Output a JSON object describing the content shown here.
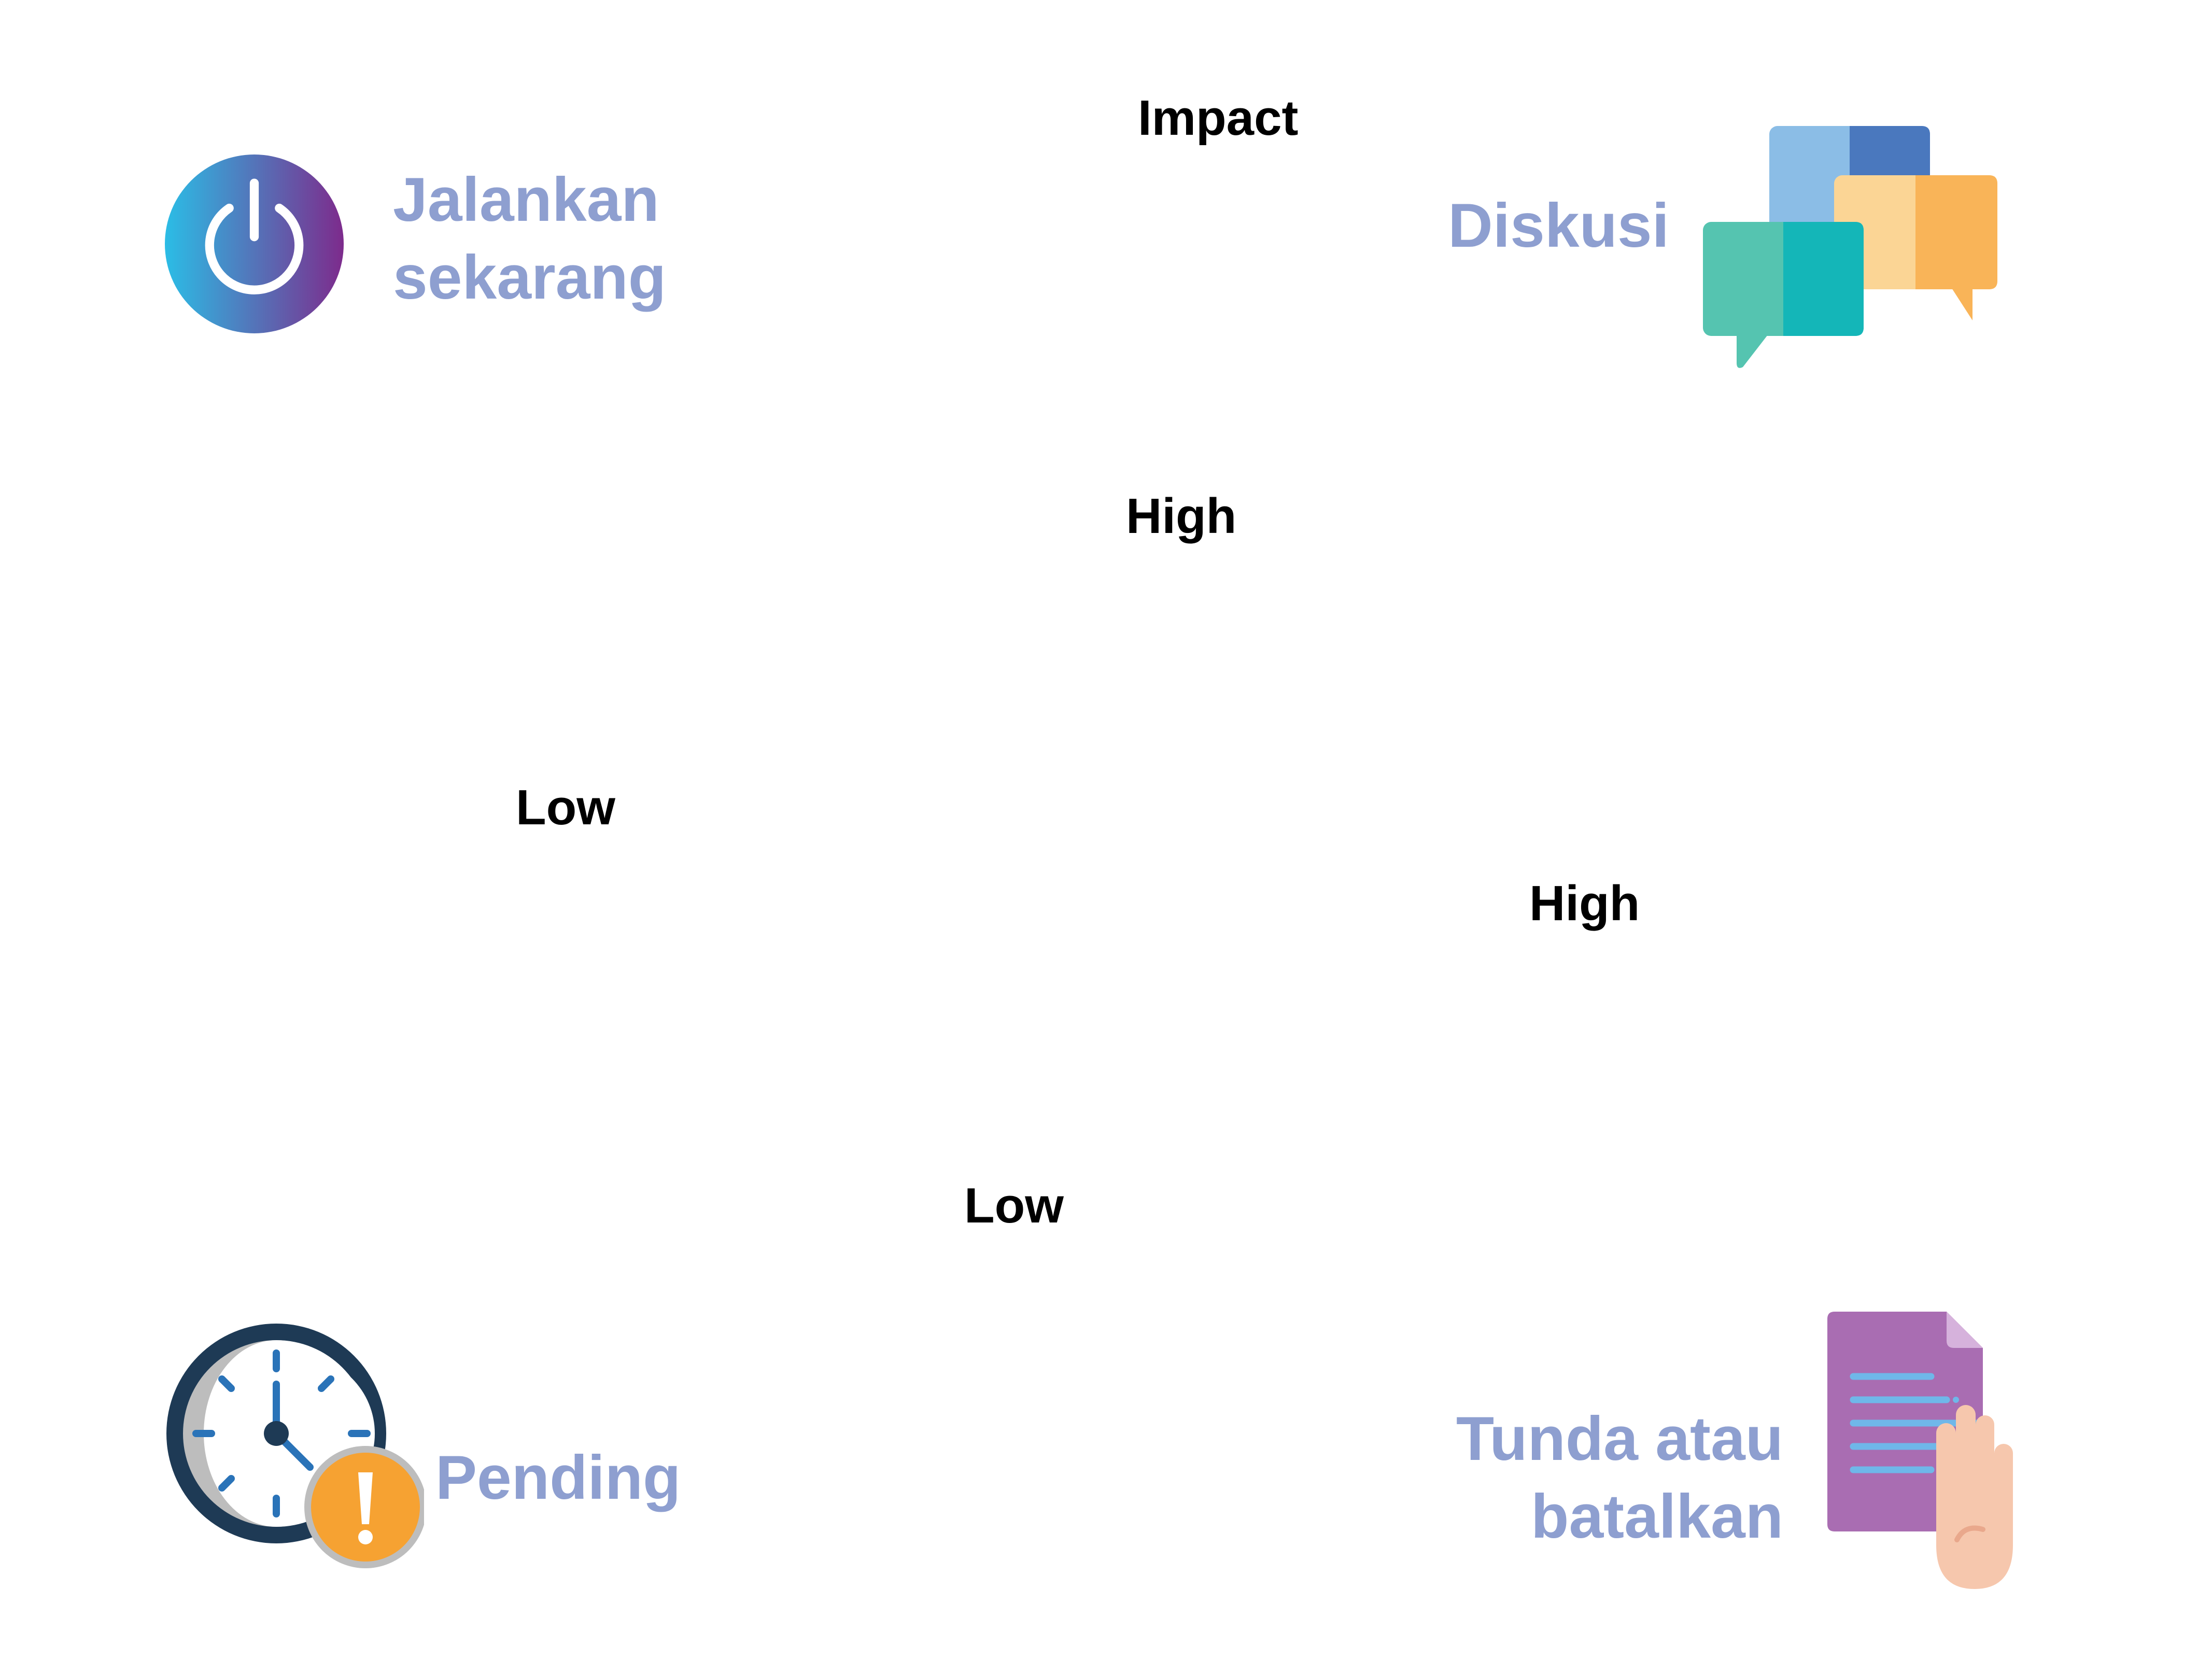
{
  "axes": {
    "vertical_title": "Impact",
    "vertical_high": "High",
    "vertical_low": "Low",
    "horizontal_low": "Low",
    "horizontal_high": "High"
  },
  "quadrants": {
    "top_left": {
      "line1": "Jalankan",
      "line2": "sekarang",
      "icon": "power-icon"
    },
    "top_right": {
      "line1": "Diskusi",
      "icon": "chat-bubbles-icon"
    },
    "bottom_left": {
      "line1": "Pending",
      "icon": "clock-alert-icon"
    },
    "bottom_right": {
      "line1": "Tunda atau",
      "line2": "batalkan",
      "icon": "document-stop-hand-icon"
    }
  },
  "colors": {
    "label_text": "#000000",
    "quadrant_text": "#8e9fd0",
    "h_axis_start": "#2bbde6",
    "h_axis_end": "#7d2b8c",
    "v_axis_start": "#d875ad",
    "v_axis_end": "#f8e85a"
  }
}
